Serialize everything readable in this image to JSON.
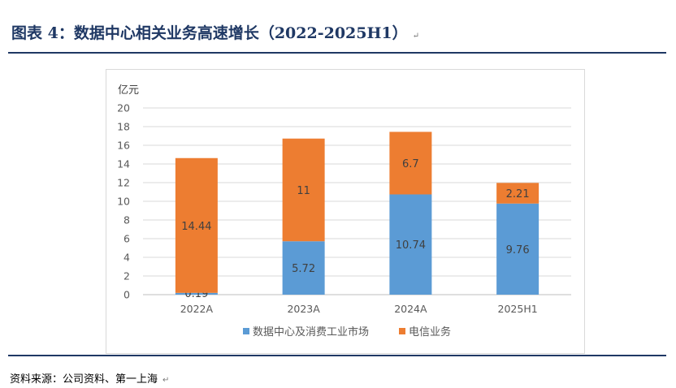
{
  "header": {
    "title": "图表 4：数据中心相关业务高速增长（2022-2025H1）",
    "mark": "↵"
  },
  "source": {
    "text": "资料来源：公司资料、第一上海",
    "mark": "↵"
  },
  "colors": {
    "series_blue": "#5b9bd5",
    "series_orange": "#ed7d31",
    "title": "#1f3864"
  },
  "chart_data": {
    "type": "bar",
    "stacked": true,
    "categories": [
      "2022A",
      "2023A",
      "2024A",
      "2025H1"
    ],
    "series": [
      {
        "name": "数据中心及消费工业市场",
        "values": [
          0.19,
          5.72,
          10.74,
          9.76
        ],
        "labels": [
          "0.19",
          "5.72",
          "10.74",
          "9.76"
        ]
      },
      {
        "name": "电信业务",
        "values": [
          14.44,
          11,
          6.7,
          2.21
        ],
        "labels": [
          "14.44",
          "11",
          "6.7",
          "2.21"
        ]
      }
    ],
    "ylabel": "亿元",
    "xlabel": "",
    "ylim": [
      0,
      20
    ],
    "yticks": [
      0,
      2,
      4,
      6,
      8,
      10,
      12,
      14,
      16,
      18,
      20
    ],
    "grid": true,
    "legend": "bottom"
  }
}
